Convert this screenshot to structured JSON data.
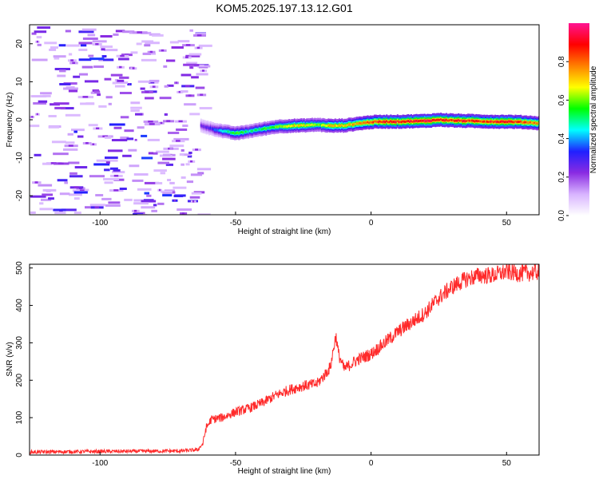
{
  "title": "KOM5.2025.197.13.12.G01",
  "chart_data": [
    {
      "type": "heatmap",
      "xlabel": "Height of straight line (km)",
      "ylabel": "Frequency (Hz)",
      "xlim": [
        -126,
        62
      ],
      "ylim": [
        -25,
        25
      ],
      "xticks": [
        -100,
        -50,
        0,
        50
      ],
      "yticks": [
        -20,
        -10,
        0,
        10,
        20
      ],
      "noise_region_x": [
        -126,
        -63
      ],
      "signal_track": {
        "x": [
          -63,
          -60,
          -55,
          -50,
          -45,
          -40,
          -35,
          -30,
          -25,
          -20,
          -15,
          -10,
          -5,
          0,
          5,
          10,
          15,
          20,
          25,
          30,
          35,
          40,
          45,
          50,
          55,
          60,
          62
        ],
        "freq": [
          -1.5,
          -2.2,
          -3.0,
          -3.6,
          -3.0,
          -2.4,
          -1.8,
          -1.6,
          -1.5,
          -1.3,
          -1.6,
          -1.5,
          -1.0,
          -0.6,
          -0.5,
          -0.5,
          -0.4,
          -0.3,
          0.0,
          -0.2,
          -0.3,
          -0.4,
          -0.5,
          -0.5,
          -0.6,
          -0.8,
          -1.0
        ],
        "amplitude": [
          0.25,
          0.3,
          0.45,
          0.6,
          0.5,
          0.55,
          0.6,
          0.7,
          0.7,
          0.6,
          0.75,
          0.7,
          0.8,
          0.85,
          0.9,
          0.9,
          0.9,
          0.95,
          0.95,
          0.9,
          0.9,
          0.85,
          0.9,
          0.9,
          0.85,
          0.8,
          0.75
        ]
      },
      "colorbar": {
        "label": "Normalized spectral amplitude",
        "range": [
          0,
          1
        ],
        "ticks": [
          "0.0",
          "0.2",
          "0.4",
          "0.6",
          "0.8"
        ],
        "colors": [
          "#ffffff",
          "#d8b4ff",
          "#8a2be2",
          "#2020ff",
          "#00ffff",
          "#00ff00",
          "#ffff00",
          "#ff8000",
          "#ff0000",
          "#ff1493"
        ]
      }
    },
    {
      "type": "line",
      "xlabel": "Height of straight line (km)",
      "ylabel": "SNR (v/v)",
      "xlim": [
        -126,
        62
      ],
      "ylim": [
        0,
        510
      ],
      "xticks": [
        -100,
        -50,
        0,
        50
      ],
      "yticks": [
        0,
        100,
        200,
        300,
        400,
        500
      ],
      "color": "#ff2a2a",
      "series": [
        {
          "x": [
            -126,
            -110,
            -90,
            -70,
            -64,
            -62,
            -61,
            -59,
            -55,
            -50,
            -45,
            -40,
            -35,
            -30,
            -25,
            -20,
            -17,
            -15,
            -13,
            -12,
            -10,
            -8,
            -5,
            0,
            5,
            10,
            15,
            20,
            25,
            30,
            35,
            40,
            45,
            50,
            55,
            60,
            62
          ],
          "values": [
            8,
            9,
            10,
            11,
            14,
            30,
            70,
            95,
            100,
            115,
            125,
            140,
            160,
            175,
            185,
            190,
            215,
            235,
            320,
            270,
            230,
            240,
            255,
            270,
            300,
            330,
            355,
            380,
            420,
            450,
            470,
            480,
            480,
            490,
            485,
            488,
            490
          ]
        }
      ]
    }
  ]
}
